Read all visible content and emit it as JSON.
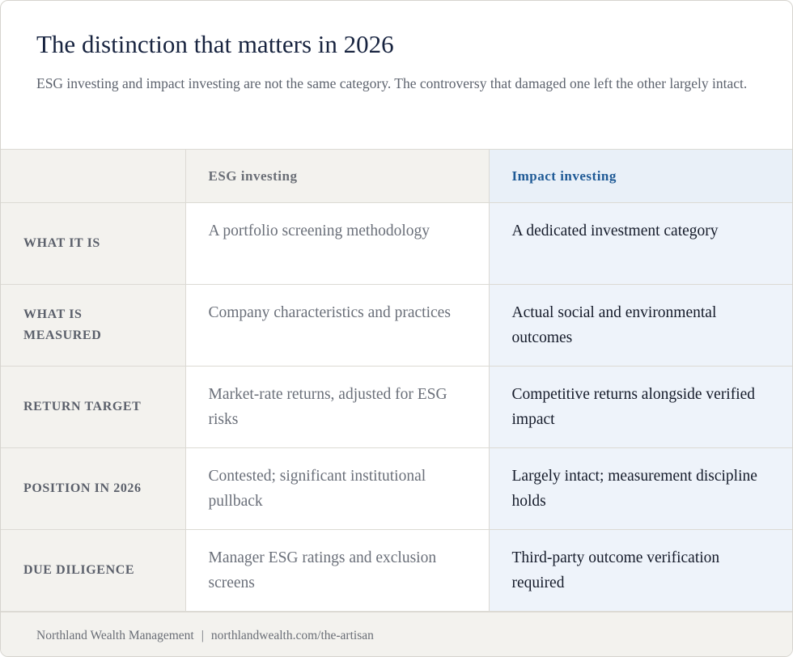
{
  "header": {
    "title": "The distinction that matters in 2026",
    "subtitle": "ESG investing and impact investing are not the same category. The controversy that damaged one left the other largely intact."
  },
  "table": {
    "columns": [
      "ESG investing",
      "Impact investing"
    ],
    "rows": [
      [
        "WHAT IT IS",
        "A portfolio screening methodology",
        "A dedicated investment category"
      ],
      [
        "WHAT IS MEASURED",
        "Company characteristics and practices",
        "Actual social and environmental outcomes"
      ],
      [
        "RETURN TARGET",
        "Market-rate returns, adjusted for ESG risks",
        "Competitive returns alongside verified impact"
      ],
      [
        "POSITION IN 2026",
        "Contested; significant institutional pullback",
        "Largely intact; measurement discipline holds"
      ],
      [
        "DUE DILIGENCE",
        "Manager ESG ratings and exclusion screens",
        "Third-party outcome verification required"
      ]
    ]
  },
  "footer": {
    "org": "Northland Wealth Management",
    "separator": "|",
    "url": "northlandwealth.com/the-artisan"
  }
}
